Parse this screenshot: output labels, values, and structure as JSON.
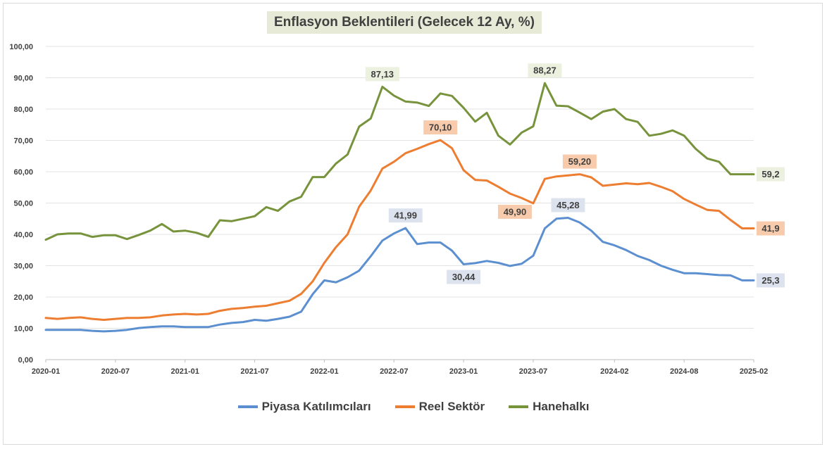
{
  "chart_data": {
    "type": "line",
    "title": "Enflasyon Beklentileri (Gelecek 12 Ay, %)",
    "xlabel": "",
    "ylabel": "",
    "ylim": [
      0,
      100
    ],
    "yticks": [
      "0,00",
      "10,00",
      "20,00",
      "30,00",
      "40,00",
      "50,00",
      "60,00",
      "70,00",
      "80,00",
      "90,00",
      "100,00"
    ],
    "xtick_labels": [
      "2020-01",
      "2020-07",
      "2021-01",
      "2021-07",
      "2022-01",
      "2022-07",
      "2023-01",
      "2023-07",
      "2024-02",
      "2024-08",
      "2025-02"
    ],
    "xtick_index": [
      0,
      6,
      12,
      18,
      24,
      30,
      36,
      42,
      49,
      55,
      61
    ],
    "x": [
      "2020-01",
      "2020-02",
      "2020-03",
      "2020-04",
      "2020-05",
      "2020-06",
      "2020-07",
      "2020-08",
      "2020-09",
      "2020-10",
      "2020-11",
      "2020-12",
      "2021-01",
      "2021-02",
      "2021-03",
      "2021-04",
      "2021-05",
      "2021-06",
      "2021-07",
      "2021-08",
      "2021-09",
      "2021-10",
      "2021-11",
      "2021-12",
      "2022-01",
      "2022-02",
      "2022-03",
      "2022-04",
      "2022-05",
      "2022-06",
      "2022-07",
      "2022-08",
      "2022-09",
      "2022-10",
      "2022-11",
      "2022-12",
      "2023-01",
      "2023-02",
      "2023-03",
      "2023-04",
      "2023-05",
      "2023-06",
      "2023-07",
      "2023-08",
      "2023-09",
      "2023-10",
      "2023-11",
      "2023-12",
      "2024-01",
      "2024-02",
      "2024-03",
      "2024-04",
      "2024-05",
      "2024-06",
      "2024-07",
      "2024-08",
      "2024-09",
      "2024-10",
      "2024-11",
      "2024-12",
      "2025-01",
      "2025-02"
    ],
    "series": [
      {
        "name": "Piyasa Katılımcıları",
        "color": "#5b8fd0",
        "values": [
          9.5,
          9.5,
          9.5,
          9.5,
          9.2,
          9.0,
          9.2,
          9.5,
          10.1,
          10.4,
          10.6,
          10.6,
          10.4,
          10.4,
          10.4,
          11.2,
          11.7,
          12.0,
          12.7,
          12.4,
          13.0,
          13.7,
          15.3,
          20.9,
          25.3,
          24.7,
          26.3,
          28.4,
          33.0,
          38.0,
          40.3,
          41.99,
          36.9,
          37.4,
          37.4,
          34.8,
          30.44,
          30.8,
          31.5,
          30.9,
          29.9,
          30.6,
          33.2,
          41.9,
          45.0,
          45.28,
          43.8,
          41.2,
          37.6,
          36.5,
          35.0,
          33.1,
          31.8,
          30.0,
          28.7,
          27.6,
          27.6,
          27.3,
          27.0,
          26.9,
          25.3,
          25.3
        ]
      },
      {
        "name": "Reel Sektör",
        "color": "#ed7d31",
        "values": [
          13.3,
          13.0,
          13.3,
          13.5,
          13.0,
          12.7,
          13.0,
          13.3,
          13.3,
          13.5,
          14.1,
          14.4,
          14.6,
          14.4,
          14.6,
          15.6,
          16.2,
          16.5,
          16.9,
          17.2,
          18.0,
          18.8,
          21.0,
          25.0,
          30.9,
          35.9,
          40.0,
          48.8,
          54.0,
          61.0,
          63.2,
          65.9,
          67.3,
          68.8,
          70.1,
          67.5,
          60.5,
          57.4,
          57.2,
          55.2,
          53.0,
          51.6,
          49.9,
          57.7,
          58.5,
          58.8,
          59.2,
          58.2,
          55.5,
          55.9,
          56.3,
          56.0,
          56.4,
          55.2,
          53.8,
          51.3,
          49.5,
          47.8,
          47.5,
          44.6,
          41.9,
          41.9
        ]
      },
      {
        "name": "Hanehalkı",
        "color": "#77933c",
        "values": [
          38.3,
          40.0,
          40.3,
          40.3,
          39.2,
          39.7,
          39.7,
          38.5,
          39.8,
          41.2,
          43.3,
          40.9,
          41.2,
          40.5,
          39.2,
          44.5,
          44.2,
          45.0,
          45.8,
          48.7,
          47.5,
          50.5,
          52.0,
          58.3,
          58.3,
          62.6,
          65.5,
          74.4,
          77.0,
          87.13,
          84.3,
          82.4,
          82.1,
          81.0,
          85.0,
          84.2,
          80.4,
          76.0,
          78.8,
          71.5,
          68.7,
          72.5,
          74.5,
          88.27,
          81.1,
          80.9,
          78.9,
          76.8,
          79.2,
          80.0,
          76.8,
          75.9,
          71.5,
          72.1,
          73.2,
          71.5,
          67.3,
          64.2,
          63.2,
          59.2,
          59.2,
          59.2
        ]
      }
    ],
    "annotations": [
      {
        "series": 0,
        "index": 31,
        "label": "41,99",
        "pos": "above",
        "bg": "#dde3ee"
      },
      {
        "series": 0,
        "index": 36,
        "label": "30,44",
        "pos": "below",
        "bg": "#dde3ee"
      },
      {
        "series": 0,
        "index": 45,
        "label": "45,28",
        "pos": "above",
        "bg": "#dde3ee"
      },
      {
        "series": 0,
        "index": 61,
        "label": "25,3",
        "pos": "right",
        "bg": "#dde3ee"
      },
      {
        "series": 1,
        "index": 34,
        "label": "70,10",
        "pos": "above",
        "bg": "#f8cbad"
      },
      {
        "series": 1,
        "index": 42,
        "label": "49,90",
        "pos": "left-below",
        "bg": "#f8cbad"
      },
      {
        "series": 1,
        "index": 46,
        "label": "59,20",
        "pos": "above",
        "bg": "#f8cbad"
      },
      {
        "series": 1,
        "index": 61,
        "label": "41,9",
        "pos": "right",
        "bg": "#f8cbad"
      },
      {
        "series": 2,
        "index": 29,
        "label": "87,13",
        "pos": "above",
        "bg": "#ebf1de"
      },
      {
        "series": 2,
        "index": 43,
        "label": "88,27",
        "pos": "above",
        "bg": "#ebf1de"
      },
      {
        "series": 2,
        "index": 61,
        "label": "59,2",
        "pos": "right",
        "bg": "#ebf1de"
      }
    ],
    "grid": true,
    "legend": "bottom"
  }
}
